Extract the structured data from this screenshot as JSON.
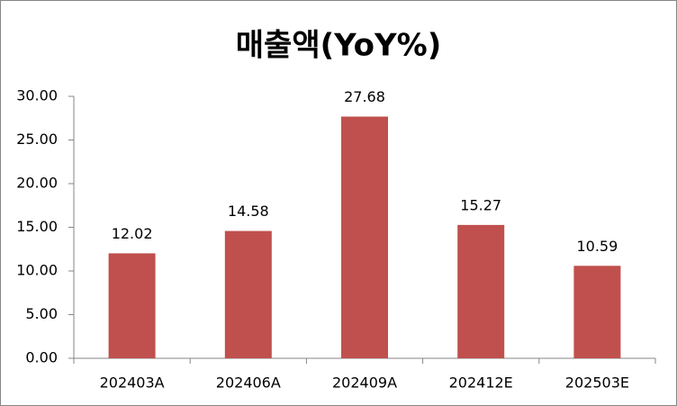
{
  "chart_data": {
    "type": "bar",
    "title": "매출액(YoY%)",
    "categories": [
      "202403A",
      "202406A",
      "202409A",
      "202412E",
      "202503E"
    ],
    "values": [
      12.02,
      14.58,
      27.68,
      15.27,
      10.59
    ],
    "color": "#c0504d",
    "ylim": [
      0,
      30
    ],
    "yticks": [
      {
        "value": 0,
        "label": "0.00"
      },
      {
        "value": 5,
        "label": "5.00"
      },
      {
        "value": 10,
        "label": "10.00"
      },
      {
        "value": 15,
        "label": "15.00"
      },
      {
        "value": 20,
        "label": "20.00"
      },
      {
        "value": 25,
        "label": "25.00"
      },
      {
        "value": 30,
        "label": "30.00"
      }
    ],
    "grid": false
  }
}
